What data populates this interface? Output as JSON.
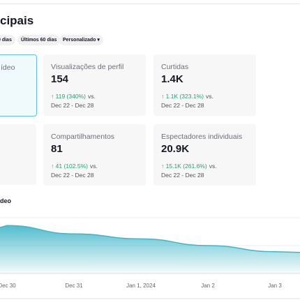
{
  "header": {
    "title": "cipais"
  },
  "filters": [
    "0 dias",
    "Últimos 60 dias",
    "Personalizado"
  ],
  "cards": [
    {
      "label": "ídeo"
    },
    {
      "label": "Visualizações de perfil",
      "value": "154",
      "change": "119 (340%)",
      "vs": "vs.",
      "range": "Dec 22 - Dec 28"
    },
    {
      "label": "Curtidas",
      "value": "1.4K",
      "change": "1.1K (323.1%)",
      "vs": "vs.",
      "range": "Dec 22 - Dec 28"
    },
    {
      "label": "Compartilhamentos",
      "value": "81",
      "change": "41 (102.5%)",
      "vs": "vs.",
      "range": "Dec 22 - Dec 28"
    },
    {
      "label": "Espectadores individuais",
      "value": "20.9K",
      "change": "15.1K (261.6%)",
      "vs": "vs.",
      "range": "Dec 22 - Dec 28"
    }
  ],
  "chart_data": {
    "type": "area",
    "title": "deo",
    "categories": [
      "Dec 30",
      "Dec 31",
      "Jan 1, 2024",
      "Jan 2",
      "Jan 3"
    ],
    "values": [
      86,
      71,
      62,
      50,
      39
    ],
    "ylim": [
      0,
      100
    ],
    "color": "#3fb6c9"
  }
}
